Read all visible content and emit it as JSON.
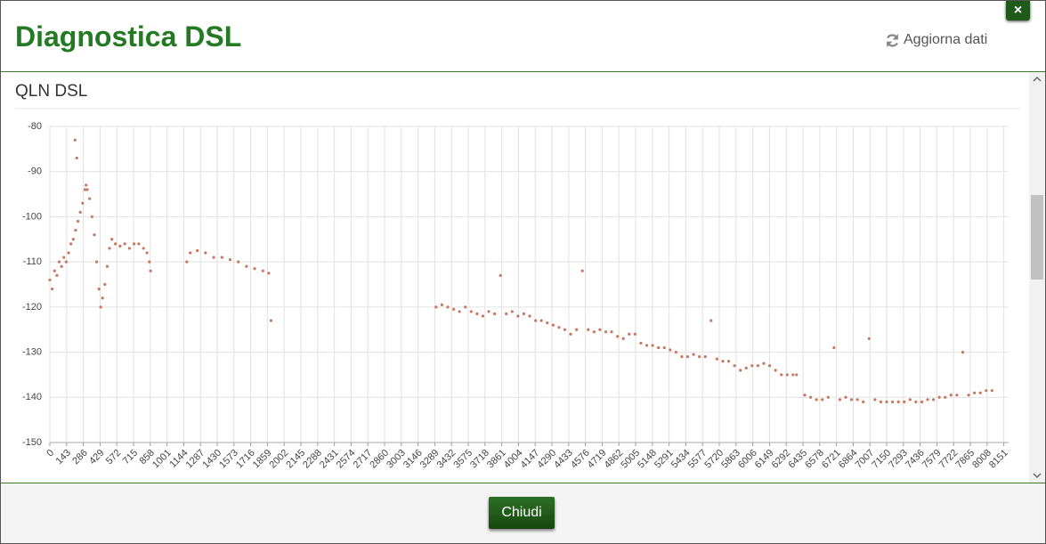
{
  "header": {
    "title": "Diagnostica DSL",
    "refresh": "Aggiorna dati",
    "close": "×"
  },
  "chart_data": {
    "type": "scatter",
    "title": "QLN DSL",
    "color": "#c8775f",
    "grid": true,
    "x": [
      0,
      20,
      40,
      60,
      80,
      100,
      120,
      140,
      160,
      180,
      200,
      215,
      220,
      230,
      240,
      260,
      280,
      300,
      310,
      320,
      340,
      360,
      380,
      400,
      420,
      435,
      450,
      470,
      490,
      510,
      530,
      560,
      600,
      640,
      680,
      720,
      760,
      800,
      830,
      850,
      860,
      1170,
      1200,
      1260,
      1330,
      1400,
      1470,
      1540,
      1610,
      1680,
      1750,
      1820,
      1870,
      1890,
      3300,
      3350,
      3400,
      3450,
      3500,
      3550,
      3600,
      3650,
      3700,
      3750,
      3800,
      3850,
      3900,
      3950,
      4000,
      4050,
      4100,
      4150,
      4200,
      4250,
      4300,
      4350,
      4400,
      4450,
      4500,
      4550,
      4600,
      4650,
      4700,
      4750,
      4800,
      4850,
      4900,
      4950,
      5000,
      5050,
      5100,
      5150,
      5200,
      5250,
      5300,
      5350,
      5400,
      5450,
      5500,
      5550,
      5600,
      5650,
      5700,
      5750,
      5800,
      5850,
      5900,
      5950,
      6000,
      6050,
      6100,
      6150,
      6200,
      6250,
      6300,
      6350,
      6380,
      6450,
      6500,
      6550,
      6600,
      6650,
      6700,
      6750,
      6800,
      6850,
      6900,
      6950,
      7000,
      7050,
      7100,
      7150,
      7200,
      7250,
      7300,
      7350,
      7400,
      7450,
      7500,
      7550,
      7600,
      7650,
      7700,
      7750,
      7800,
      7850,
      7900,
      7950,
      8000,
      8050
    ],
    "values": [
      -114,
      -116,
      -112,
      -113,
      -110,
      -111,
      -109,
      -110,
      -108,
      -106,
      -105,
      -83,
      -103,
      -87,
      -101,
      -99,
      -97,
      -94,
      -93,
      -94,
      -96,
      -100,
      -104,
      -110,
      -116,
      -120,
      -118,
      -115,
      -111,
      -107,
      -105,
      -106,
      -106.5,
      -106,
      -107,
      -106,
      -106,
      -107,
      -108,
      -110,
      -112,
      -110,
      -108,
      -107.5,
      -108,
      -109,
      -109,
      -109.5,
      -110,
      -111,
      -111.5,
      -112,
      -112.5,
      -123,
      -120,
      -119.5,
      -120,
      -120.5,
      -121,
      -120,
      -121,
      -121.5,
      -122,
      -121,
      -121.5,
      -113,
      -121.5,
      -121,
      -122,
      -121.5,
      -122,
      -123,
      -123,
      -123.5,
      -124,
      -124.5,
      -125,
      -126,
      -125,
      -112,
      -125,
      -125.5,
      -125,
      -125.5,
      -125.5,
      -126.5,
      -127,
      -126,
      -126,
      -128,
      -128.5,
      -128.5,
      -129,
      -129,
      -129.5,
      -130,
      -131,
      -131,
      -130.5,
      -131,
      -131,
      -123,
      -131.5,
      -132,
      -132,
      -133,
      -134,
      -133.5,
      -133,
      -133,
      -132.5,
      -133,
      -134,
      -135,
      -135,
      -135,
      -135,
      -139.5,
      -140,
      -140.5,
      -140.5,
      -140,
      -129,
      -140.5,
      -140,
      -140.5,
      -140.5,
      -141,
      -127,
      -140.5,
      -141,
      -141,
      -141,
      -141,
      -141,
      -140.5,
      -141,
      -141,
      -140.5,
      -140.5,
      -140,
      -140,
      -139.5,
      -139.5,
      -130,
      -139.5,
      -139,
      -139,
      -138.5,
      -138.5
    ],
    "xlim": [
      0,
      8192
    ],
    "ylim": [
      -150,
      -80
    ],
    "yticks": [
      -80,
      -90,
      -100,
      -110,
      -120,
      -130,
      -140,
      -150
    ],
    "xticks": [
      0,
      143,
      286,
      429,
      572,
      715,
      858,
      1001,
      1144,
      1287,
      1430,
      1573,
      1716,
      1859,
      2002,
      2145,
      2288,
      2431,
      2574,
      2717,
      2860,
      3003,
      3146,
      3289,
      3432,
      3575,
      3718,
      3861,
      4004,
      4147,
      4290,
      4433,
      4576,
      4719,
      4862,
      5005,
      5148,
      5291,
      5434,
      5577,
      5720,
      5863,
      6006,
      6149,
      6292,
      6435,
      6578,
      6721,
      6864,
      7007,
      7150,
      7293,
      7436,
      7579,
      7722,
      7865,
      8008,
      8151
    ]
  },
  "footer": {
    "button": "Chiudi"
  }
}
